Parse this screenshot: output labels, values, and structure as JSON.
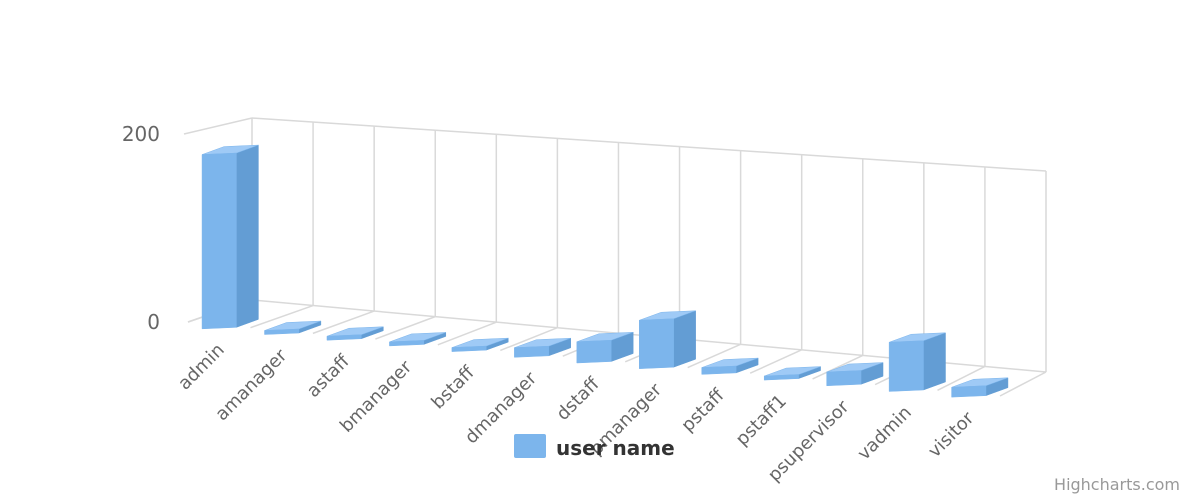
{
  "chart_data": {
    "type": "bar",
    "categories": [
      "admin",
      "amanager",
      "astaff",
      "bmanager",
      "bstaff",
      "dmanager",
      "dstaff",
      "pmanager",
      "pstaff",
      "pstaff1",
      "psupervisor",
      "vadmin",
      "visitor"
    ],
    "series": [
      {
        "name": "user name",
        "values": [
          185,
          4,
          4,
          2,
          3,
          10,
          22,
          50,
          7,
          1,
          14,
          50,
          10
        ]
      }
    ],
    "ylim": [
      0,
      200
    ],
    "yticks": [
      0,
      200
    ],
    "grid": true,
    "legend": "bottom-center",
    "colors": {
      "front": "#7cb5ec",
      "side": "#639dd4",
      "top": "#9fcaf6",
      "grid": "#d9d9d9"
    },
    "credits": "Highcharts.com"
  }
}
